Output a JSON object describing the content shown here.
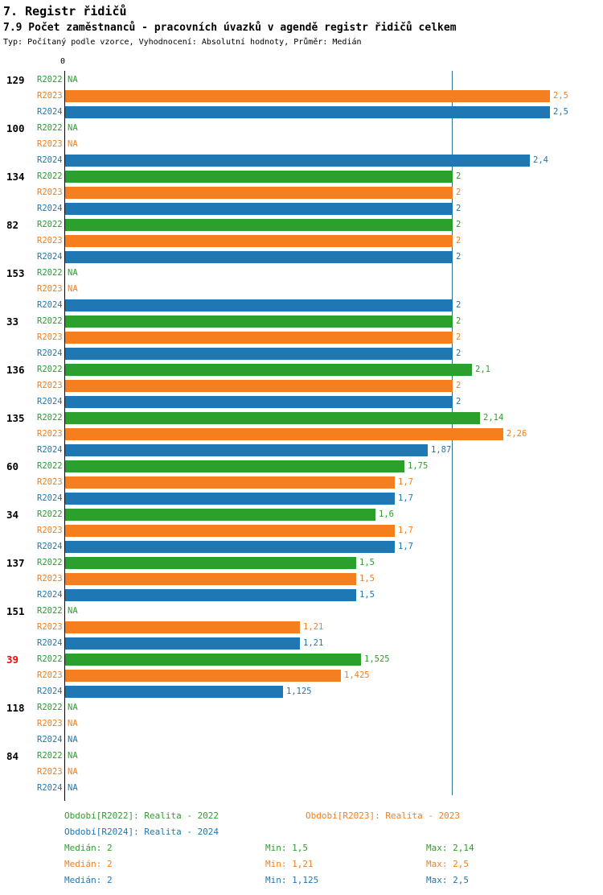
{
  "title": "7. Registr řidičů",
  "subtitle": "7.9 Počet zaměstnanců - pracovních úvazků v agendě registr řidičů celkem",
  "meta": "Typ: Počítaný podle vzorce, Vyhodnocení: Absolutní hodnoty, Průměr: Medián",
  "colors": {
    "r2022": "#2ca02c",
    "r2023": "#f57e1f",
    "r2024": "#1f77b4",
    "highlight": "#ff0000",
    "axis": "#000000",
    "median_line": "#2e6e8e"
  },
  "axis": {
    "origin_label": "0",
    "median_value": 2
  },
  "chart_data": {
    "type": "bar",
    "orientation": "horizontal",
    "title": "7.9 Počet zaměstnanců - pracovních úvazků v agendě registr řidičů celkem",
    "xlim": [
      0,
      2.6
    ],
    "grid": false,
    "series_labels": [
      "R2022",
      "R2023",
      "R2024"
    ],
    "na_text": "NA",
    "groups": [
      {
        "id": "129",
        "highlight": false,
        "values": [
          null,
          2.5,
          2.5
        ],
        "labels": [
          "NA",
          "2,5",
          "2,5"
        ]
      },
      {
        "id": "100",
        "highlight": false,
        "values": [
          null,
          null,
          2.4
        ],
        "labels": [
          "NA",
          "NA",
          "2,4"
        ]
      },
      {
        "id": "134",
        "highlight": false,
        "values": [
          2,
          2,
          2
        ],
        "labels": [
          "2",
          "2",
          "2"
        ]
      },
      {
        "id": "82",
        "highlight": false,
        "values": [
          2,
          2,
          2
        ],
        "labels": [
          "2",
          "2",
          "2"
        ]
      },
      {
        "id": "153",
        "highlight": false,
        "values": [
          null,
          null,
          2
        ],
        "labels": [
          "NA",
          "NA",
          "2"
        ]
      },
      {
        "id": "33",
        "highlight": false,
        "values": [
          2,
          2,
          2
        ],
        "labels": [
          "2",
          "2",
          "2"
        ]
      },
      {
        "id": "136",
        "highlight": false,
        "values": [
          2.1,
          2,
          2
        ],
        "labels": [
          "2,1",
          "2",
          "2"
        ]
      },
      {
        "id": "135",
        "highlight": false,
        "values": [
          2.14,
          2.26,
          1.87
        ],
        "labels": [
          "2,14",
          "2,26",
          "1,87"
        ]
      },
      {
        "id": "60",
        "highlight": false,
        "values": [
          1.75,
          1.7,
          1.7
        ],
        "labels": [
          "1,75",
          "1,7",
          "1,7"
        ]
      },
      {
        "id": "34",
        "highlight": false,
        "values": [
          1.6,
          1.7,
          1.7
        ],
        "labels": [
          "1,6",
          "1,7",
          "1,7"
        ]
      },
      {
        "id": "137",
        "highlight": false,
        "values": [
          1.5,
          1.5,
          1.5
        ],
        "labels": [
          "1,5",
          "1,5",
          "1,5"
        ]
      },
      {
        "id": "151",
        "highlight": false,
        "values": [
          null,
          1.21,
          1.21
        ],
        "labels": [
          "NA",
          "1,21",
          "1,21"
        ]
      },
      {
        "id": "39",
        "highlight": true,
        "values": [
          1.525,
          1.425,
          1.125
        ],
        "labels": [
          "1,525",
          "1,425",
          "1,125"
        ]
      },
      {
        "id": "118",
        "highlight": false,
        "values": [
          null,
          null,
          null
        ],
        "labels": [
          "NA",
          "NA",
          "NA"
        ]
      },
      {
        "id": "84",
        "highlight": false,
        "values": [
          null,
          null,
          null
        ],
        "labels": [
          "NA",
          "NA",
          "NA"
        ]
      }
    ]
  },
  "legend": {
    "series": [
      {
        "label": "Období[R2022]: Realita - 2022",
        "median": "Medián: 2",
        "min": "Min: 1,5",
        "max": "Max: 2,14"
      },
      {
        "label": "Období[R2023]: Realita - 2023",
        "median": "Medián: 2",
        "min": "Min: 1,21",
        "max": "Max: 2,5"
      },
      {
        "label": "Období[R2024]: Realita - 2024",
        "median": "Medián: 2",
        "min": "Min: 1,125",
        "max": "Max: 2,5"
      }
    ]
  }
}
